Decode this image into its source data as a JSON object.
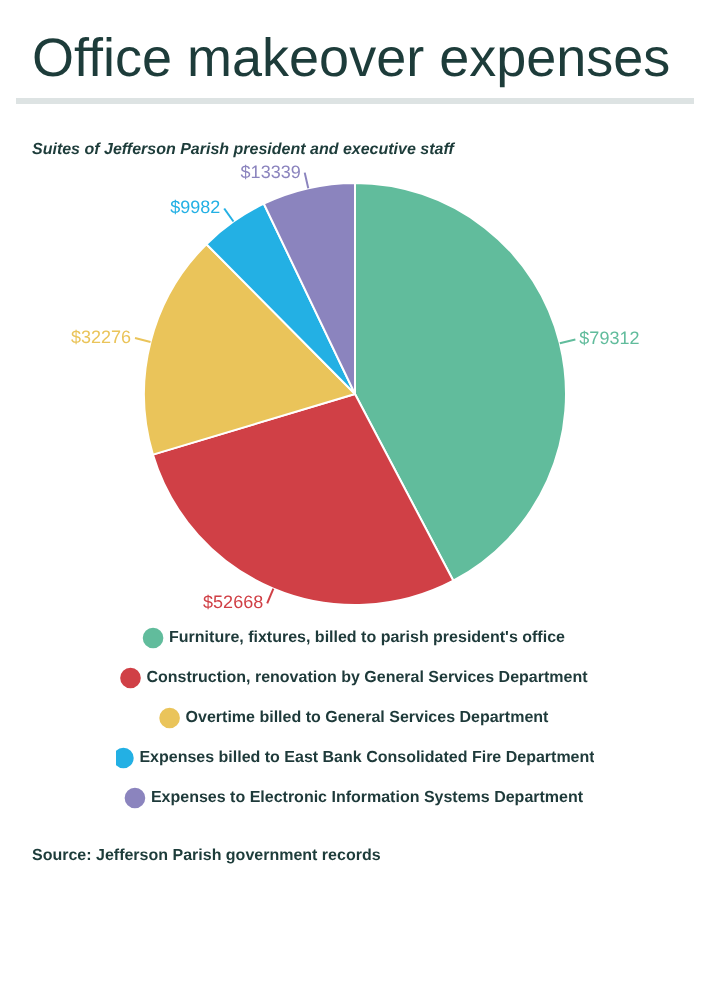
{
  "chart_data": {
    "type": "pie",
    "title": "Office makeover expenses",
    "subtitle": "Suites of Jefferson Parish president and executive staff",
    "categories": [
      "Furniture, fixtures, billed to parish president's office",
      "Construction, renovation by General Services Department",
      "Overtime billed to General Services Department",
      "Expenses billed to East Bank Consolidated Fire Department",
      "Expenses to Electronic Information Systems Department"
    ],
    "values": [
      79312,
      52668,
      32276,
      9982,
      13339
    ],
    "value_labels": [
      "$79312",
      "$52668",
      "$32276",
      "$9982",
      "$13339"
    ],
    "colors": [
      "#61bc9c",
      "#d04046",
      "#eac45a",
      "#23b0e4",
      "#8b84be"
    ],
    "legend": "bottom",
    "annotations": [
      "Source: Jefferson Parish government records"
    ]
  }
}
